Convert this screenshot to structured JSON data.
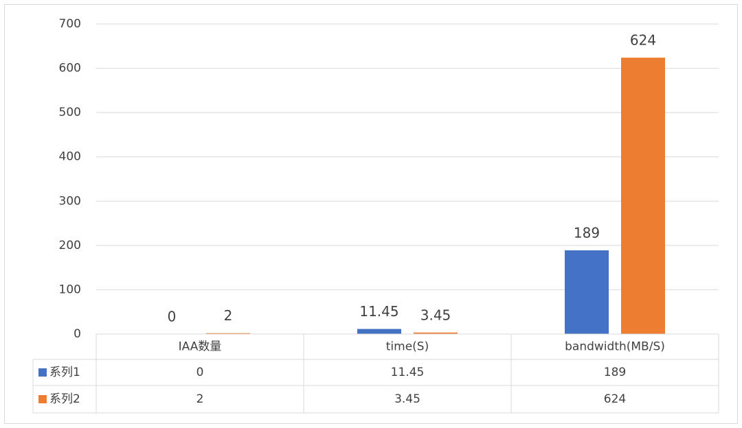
{
  "chart_data": {
    "type": "bar",
    "categories": [
      "IAA数量",
      "time(S)",
      "bandwidth(MB/S)"
    ],
    "series": [
      {
        "name": "系列1",
        "color": "#4472c4",
        "values": [
          0,
          11.45,
          189
        ]
      },
      {
        "name": "系列2",
        "color": "#ed7d31",
        "values": [
          2,
          3.45,
          624
        ]
      }
    ],
    "ylim": [
      0,
      700
    ],
    "yticks": [
      0,
      100,
      200,
      300,
      400,
      500,
      600,
      700
    ],
    "grid": true,
    "data_table": true
  }
}
